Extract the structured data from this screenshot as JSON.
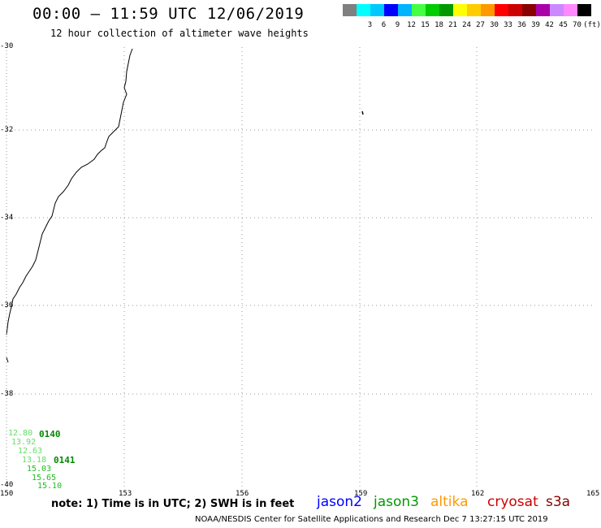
{
  "header": {
    "title": "00:00 – 11:59 UTC 12/06/2019",
    "subtitle": "12 hour collection of altimeter wave heights"
  },
  "scale": {
    "unit": "(ft)",
    "bins": [
      {
        "label": "",
        "color": "#808080"
      },
      {
        "label": "3",
        "color": "#00ffff"
      },
      {
        "label": "6",
        "color": "#00c8ff"
      },
      {
        "label": "9",
        "color": "#0000ff"
      },
      {
        "label": "12",
        "color": "#00b4ff"
      },
      {
        "label": "15",
        "color": "#44ff44"
      },
      {
        "label": "18",
        "color": "#00cc00"
      },
      {
        "label": "21",
        "color": "#009900"
      },
      {
        "label": "24",
        "color": "#ffff00"
      },
      {
        "label": "27",
        "color": "#ffcc00"
      },
      {
        "label": "30",
        "color": "#ff9900"
      },
      {
        "label": "33",
        "color": "#ff0000"
      },
      {
        "label": "36",
        "color": "#cc0000"
      },
      {
        "label": "39",
        "color": "#880000"
      },
      {
        "label": "42",
        "color": "#aa00aa"
      },
      {
        "label": "45",
        "color": "#cc88ff"
      },
      {
        "label": "70",
        "color": "#ff88ff"
      },
      {
        "label": "",
        "color": "#000000"
      }
    ]
  },
  "map": {
    "lat_labels": [
      "-30",
      "-32",
      "-34",
      "-36",
      "-38",
      "-40"
    ],
    "lon_labels": [
      "150",
      "153",
      "156",
      "159",
      "162",
      "165"
    ],
    "observations": [
      {
        "value": "12.80",
        "color": "#66dd66"
      },
      {
        "value": "13.92",
        "color": "#66dd66"
      },
      {
        "value": "12.63",
        "color": "#66dd66"
      },
      {
        "value": "13.18",
        "color": "#66dd66"
      },
      {
        "value": "15.03",
        "color": "#22bb22"
      },
      {
        "value": "15.65",
        "color": "#22bb22"
      },
      {
        "value": "15.10",
        "color": "#22bb22"
      }
    ],
    "pass_labels": [
      "0140",
      "0141"
    ]
  },
  "legend": {
    "note": "note: 1) Time is in UTC; 2) SWH is in feet",
    "satellites": [
      {
        "name": "jason2",
        "color": "#0000ff"
      },
      {
        "name": "jason3",
        "color": "#009900"
      },
      {
        "name": "altika",
        "color": "#ff9900"
      },
      {
        "name": "cryosat",
        "color": "#cc0000"
      },
      {
        "name": "s3a",
        "color": "#880000"
      }
    ]
  },
  "footer": {
    "credit": "NOAA/NESDIS Center for Satellite Applications and Research    Dec  7 13:27:15 UTC 2019"
  }
}
